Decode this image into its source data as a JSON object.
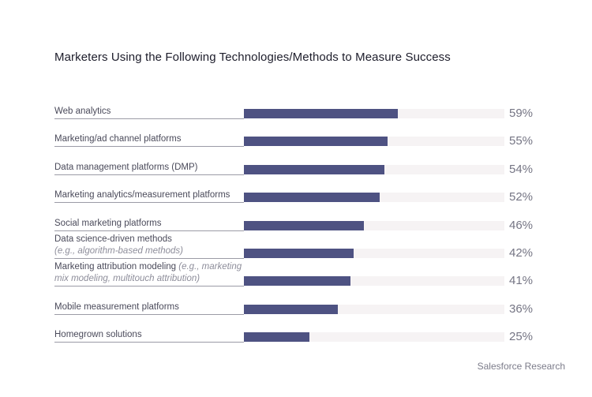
{
  "title": "Marketers Using the Following Technologies/Methods to Measure Success",
  "source": "Salesforce Research",
  "chart_data": {
    "type": "bar",
    "orientation": "horizontal",
    "title": "Marketers Using the Following Technologies/Methods to Measure Success",
    "xlim": [
      0,
      100
    ],
    "grid": false,
    "colors": {
      "bar": "#4e5282",
      "track": "#f6f3f4"
    },
    "categories": [
      {
        "label": "Web analytics",
        "sub": "",
        "value": 59,
        "display": "59%"
      },
      {
        "label": "Marketing/ad channel platforms",
        "sub": "",
        "value": 55,
        "display": "55%"
      },
      {
        "label": "Data management platforms (DMP)",
        "sub": "",
        "value": 54,
        "display": "54%"
      },
      {
        "label": "Marketing analytics/measurement platforms",
        "sub": "",
        "value": 52,
        "display": "52%"
      },
      {
        "label": "Social marketing platforms",
        "sub": "",
        "value": 46,
        "display": "46%"
      },
      {
        "label": "Data science-driven methods",
        "sub": "(e.g., algorithm-based methods)",
        "value": 42,
        "display": "42%"
      },
      {
        "label": "Marketing attribution modeling ",
        "sub": "(e.g., marketing mix modeling, multitouch attribution)",
        "value": 41,
        "display": "41%"
      },
      {
        "label": "Mobile measurement platforms",
        "sub": "",
        "value": 36,
        "display": "36%"
      },
      {
        "label": "Homegrown solutions",
        "sub": "",
        "value": 25,
        "display": "25%"
      }
    ]
  }
}
